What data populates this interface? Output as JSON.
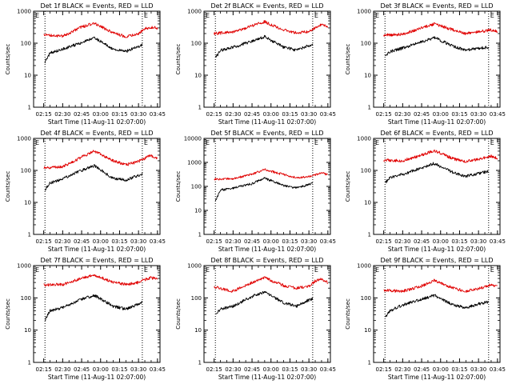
{
  "colors": {
    "events": "#000000",
    "lld": "#e00000",
    "axis": "#000000",
    "background": "#ffffff"
  },
  "panel_labels": {
    "ylabel": "Counts/sec",
    "xlabel": "Start Time (11-Aug-11 02:07:00)",
    "ymin_tick": "1",
    "marker_letter": "E",
    "ytick_labels": [
      "1",
      "10",
      "100",
      "1000"
    ],
    "ytick_labels_wide": [
      "1",
      "10",
      "100",
      "1000",
      "10000"
    ],
    "xtick_labels": [
      "02:15",
      "02:30",
      "02:45",
      "03:00",
      "03:15",
      "03:30",
      "03:45"
    ]
  },
  "chart_data": [
    {
      "type": "line",
      "title": "Det 1f BLACK = Events, RED = LLD",
      "xlabel": "Start Time (11-Aug-11 02:07:00)",
      "ylabel": "Counts/sec",
      "x_ticks": [
        "02:15",
        "02:30",
        "02:45",
        "03:00",
        "03:15",
        "03:30",
        "03:45"
      ],
      "xlim_minutes_after_02_07": [
        0,
        100
      ],
      "ylim": [
        1,
        1000
      ],
      "y_scale": "log",
      "vertical_dotted_lines": [
        "02:16",
        "03:33"
      ],
      "series": [
        {
          "color": "red",
          "x": [
            "02:15",
            "02:30",
            "02:45",
            "02:55",
            "03:10",
            "03:20",
            "03:30",
            "03:35",
            "03:40",
            "03:45"
          ],
          "values": [
            180,
            165,
            320,
            420,
            210,
            160,
            200,
            280,
            320,
            290
          ]
        },
        {
          "color": "black",
          "x": [
            "02:16",
            "02:20",
            "02:30",
            "02:45",
            "02:55",
            "03:10",
            "03:20",
            "03:30",
            "03:33"
          ],
          "values": [
            25,
            50,
            65,
            105,
            150,
            65,
            55,
            80,
            90
          ]
        }
      ]
    },
    {
      "type": "line",
      "title": "Det 2f BLACK = Events, RED = LLD",
      "xlabel": "Start Time (11-Aug-11 02:07:00)",
      "ylabel": "Counts/sec",
      "x_ticks": [
        "02:15",
        "02:30",
        "02:45",
        "03:00",
        "03:15",
        "03:30",
        "03:45"
      ],
      "xlim_minutes_after_02_07": [
        0,
        100
      ],
      "ylim": [
        1,
        1000
      ],
      "y_scale": "log",
      "vertical_dotted_lines": [
        "02:16",
        "03:33"
      ],
      "series": [
        {
          "color": "red",
          "x": [
            "02:15",
            "02:30",
            "02:45",
            "02:55",
            "03:10",
            "03:20",
            "03:30",
            "03:35",
            "03:40",
            "03:45"
          ],
          "values": [
            200,
            220,
            350,
            470,
            260,
            210,
            230,
            300,
            380,
            320
          ]
        },
        {
          "color": "black",
          "x": [
            "02:16",
            "02:20",
            "02:30",
            "02:45",
            "02:55",
            "03:10",
            "03:20",
            "03:30",
            "03:33"
          ],
          "values": [
            35,
            60,
            75,
            115,
            160,
            75,
            60,
            85,
            95
          ]
        }
      ]
    },
    {
      "type": "line",
      "title": "Det 3f BLACK = Events, RED = LLD",
      "xlabel": "Start Time (11-Aug-11 02:07:00)",
      "ylabel": "Counts/sec",
      "x_ticks": [
        "02:15",
        "02:30",
        "02:45",
        "03:00",
        "03:15",
        "03:30",
        "03:45"
      ],
      "xlim_minutes_after_02_07": [
        0,
        100
      ],
      "ylim": [
        1,
        1000
      ],
      "y_scale": "log",
      "vertical_dotted_lines": [
        "02:16",
        "03:38"
      ],
      "series": [
        {
          "color": "red",
          "x": [
            "02:15",
            "02:30",
            "02:45",
            "02:55",
            "03:10",
            "03:20",
            "03:30",
            "03:35",
            "03:40",
            "03:45"
          ],
          "values": [
            180,
            190,
            300,
            400,
            260,
            200,
            230,
            240,
            260,
            230
          ]
        },
        {
          "color": "black",
          "x": [
            "02:16",
            "02:20",
            "02:30",
            "02:45",
            "02:55",
            "03:10",
            "03:20",
            "03:30",
            "03:38"
          ],
          "values": [
            40,
            55,
            70,
            110,
            150,
            80,
            60,
            70,
            75
          ]
        }
      ]
    },
    {
      "type": "line",
      "title": "Det 4f BLACK = Events, RED = LLD",
      "xlabel": "Start Time (11-Aug-11 02:07:00)",
      "ylabel": "Counts/sec",
      "x_ticks": [
        "02:15",
        "02:30",
        "02:45",
        "03:00",
        "03:15",
        "03:30",
        "03:45"
      ],
      "xlim_minutes_after_02_07": [
        0,
        100
      ],
      "ylim": [
        1,
        1000
      ],
      "y_scale": "log",
      "vertical_dotted_lines": [
        "02:16",
        "03:33"
      ],
      "series": [
        {
          "color": "red",
          "x": [
            "02:15",
            "02:30",
            "02:45",
            "02:55",
            "03:10",
            "03:20",
            "03:30",
            "03:35",
            "03:40",
            "03:45"
          ],
          "values": [
            120,
            130,
            260,
            400,
            200,
            150,
            190,
            240,
            300,
            220
          ]
        },
        {
          "color": "black",
          "x": [
            "02:16",
            "02:20",
            "02:30",
            "02:45",
            "02:55",
            "03:10",
            "03:20",
            "03:30",
            "03:33"
          ],
          "values": [
            25,
            40,
            55,
            100,
            140,
            55,
            50,
            70,
            80
          ]
        }
      ]
    },
    {
      "type": "line",
      "title": "Det 5f BLACK = Events, RED = LLD",
      "xlabel": "Start Time (11-Aug-11 02:07:00)",
      "ylabel": "Counts/sec",
      "x_ticks": [
        "02:15",
        "02:30",
        "02:45",
        "03:00",
        "03:15",
        "03:30",
        "03:45"
      ],
      "xlim_minutes_after_02_07": [
        0,
        100
      ],
      "ylim": [
        1,
        10000
      ],
      "y_scale": "log",
      "vertical_dotted_lines": [
        "02:16",
        "03:33"
      ],
      "series": [
        {
          "color": "red",
          "x": [
            "02:15",
            "02:30",
            "02:45",
            "02:55",
            "03:10",
            "03:20",
            "03:30",
            "03:35",
            "03:40",
            "03:45"
          ],
          "values": [
            200,
            210,
            320,
            500,
            310,
            230,
            260,
            300,
            380,
            300
          ]
        },
        {
          "color": "black",
          "x": [
            "02:16",
            "02:20",
            "02:30",
            "02:45",
            "02:55",
            "03:10",
            "03:20",
            "03:30",
            "03:33"
          ],
          "values": [
            25,
            70,
            85,
            130,
            220,
            110,
            85,
            120,
            140
          ]
        }
      ]
    },
    {
      "type": "line",
      "title": "Det 6f BLACK = Events, RED = LLD",
      "xlabel": "Start Time (11-Aug-11 02:07:00)",
      "ylabel": "Counts/sec",
      "x_ticks": [
        "02:15",
        "02:30",
        "02:45",
        "03:00",
        "03:15",
        "03:30",
        "03:45"
      ],
      "xlim_minutes_after_02_07": [
        0,
        100
      ],
      "ylim": [
        1,
        1000
      ],
      "y_scale": "log",
      "vertical_dotted_lines": [
        "02:16",
        "03:38"
      ],
      "series": [
        {
          "color": "red",
          "x": [
            "02:15",
            "02:30",
            "02:45",
            "02:55",
            "03:10",
            "03:20",
            "03:30",
            "03:35",
            "03:40",
            "03:45"
          ],
          "values": [
            210,
            200,
            300,
            420,
            230,
            190,
            220,
            250,
            280,
            240
          ]
        },
        {
          "color": "black",
          "x": [
            "02:16",
            "02:20",
            "02:30",
            "02:45",
            "02:55",
            "03:10",
            "03:20",
            "03:30",
            "03:38"
          ],
          "values": [
            40,
            60,
            75,
            120,
            165,
            85,
            65,
            80,
            95
          ]
        }
      ]
    },
    {
      "type": "line",
      "title": "Det 7f BLACK = Events, RED = LLD",
      "xlabel": "Start Time (11-Aug-11 02:07:00)",
      "ylabel": "Counts/sec",
      "x_ticks": [
        "02:15",
        "02:30",
        "02:45",
        "03:00",
        "03:15",
        "03:30",
        "03:45"
      ],
      "xlim_minutes_after_02_07": [
        0,
        100
      ],
      "ylim": [
        1,
        1000
      ],
      "y_scale": "log",
      "vertical_dotted_lines": [
        "02:16",
        "03:33"
      ],
      "series": [
        {
          "color": "red",
          "x": [
            "02:15",
            "02:30",
            "02:45",
            "02:55",
            "03:10",
            "03:20",
            "03:30",
            "03:35",
            "03:40",
            "03:45"
          ],
          "values": [
            250,
            260,
            400,
            520,
            300,
            260,
            300,
            370,
            420,
            380
          ]
        },
        {
          "color": "black",
          "x": [
            "02:16",
            "02:20",
            "02:30",
            "02:45",
            "02:55",
            "03:10",
            "03:20",
            "03:30",
            "03:33"
          ],
          "values": [
            20,
            40,
            50,
            90,
            120,
            55,
            45,
            65,
            75
          ]
        }
      ]
    },
    {
      "type": "line",
      "title": "Det 8f BLACK = Events, RED = LLD",
      "xlabel": "Start Time (11-Aug-11 02:07:00)",
      "ylabel": "Counts/sec",
      "x_ticks": [
        "02:15",
        "02:30",
        "02:45",
        "03:00",
        "03:15",
        "03:30",
        "03:45"
      ],
      "xlim_minutes_after_02_07": [
        0,
        100
      ],
      "ylim": [
        1,
        1000
      ],
      "y_scale": "log",
      "vertical_dotted_lines": [
        "02:16",
        "03:33"
      ],
      "series": [
        {
          "color": "red",
          "x": [
            "02:15",
            "02:30",
            "02:45",
            "02:55",
            "03:10",
            "03:20",
            "03:30",
            "03:35",
            "03:40",
            "03:45"
          ],
          "values": [
            220,
            160,
            300,
            420,
            240,
            200,
            230,
            330,
            380,
            300
          ]
        },
        {
          "color": "black",
          "x": [
            "02:16",
            "02:20",
            "02:30",
            "02:45",
            "02:55",
            "03:10",
            "03:20",
            "03:30",
            "03:33"
          ],
          "values": [
            30,
            45,
            55,
            110,
            155,
            70,
            55,
            85,
            95
          ]
        }
      ]
    },
    {
      "type": "line",
      "title": "Det 9f BLACK = Events, RED = LLD",
      "xlabel": "Start Time (11-Aug-11 02:07:00)",
      "ylabel": "Counts/sec",
      "x_ticks": [
        "02:15",
        "02:30",
        "02:45",
        "03:00",
        "03:15",
        "03:30",
        "03:45"
      ],
      "xlim_minutes_after_02_07": [
        0,
        100
      ],
      "ylim": [
        1,
        1000
      ],
      "y_scale": "log",
      "vertical_dotted_lines": [
        "02:16",
        "03:38"
      ],
      "series": [
        {
          "color": "red",
          "x": [
            "02:15",
            "02:30",
            "02:45",
            "02:55",
            "03:10",
            "03:20",
            "03:30",
            "03:35",
            "03:40",
            "03:45"
          ],
          "values": [
            170,
            160,
            230,
            350,
            200,
            160,
            190,
            220,
            260,
            220
          ]
        },
        {
          "color": "black",
          "x": [
            "02:16",
            "02:20",
            "02:30",
            "02:45",
            "02:55",
            "03:10",
            "03:20",
            "03:30",
            "03:38"
          ],
          "values": [
            25,
            40,
            60,
            90,
            120,
            60,
            50,
            65,
            75
          ]
        }
      ]
    }
  ]
}
